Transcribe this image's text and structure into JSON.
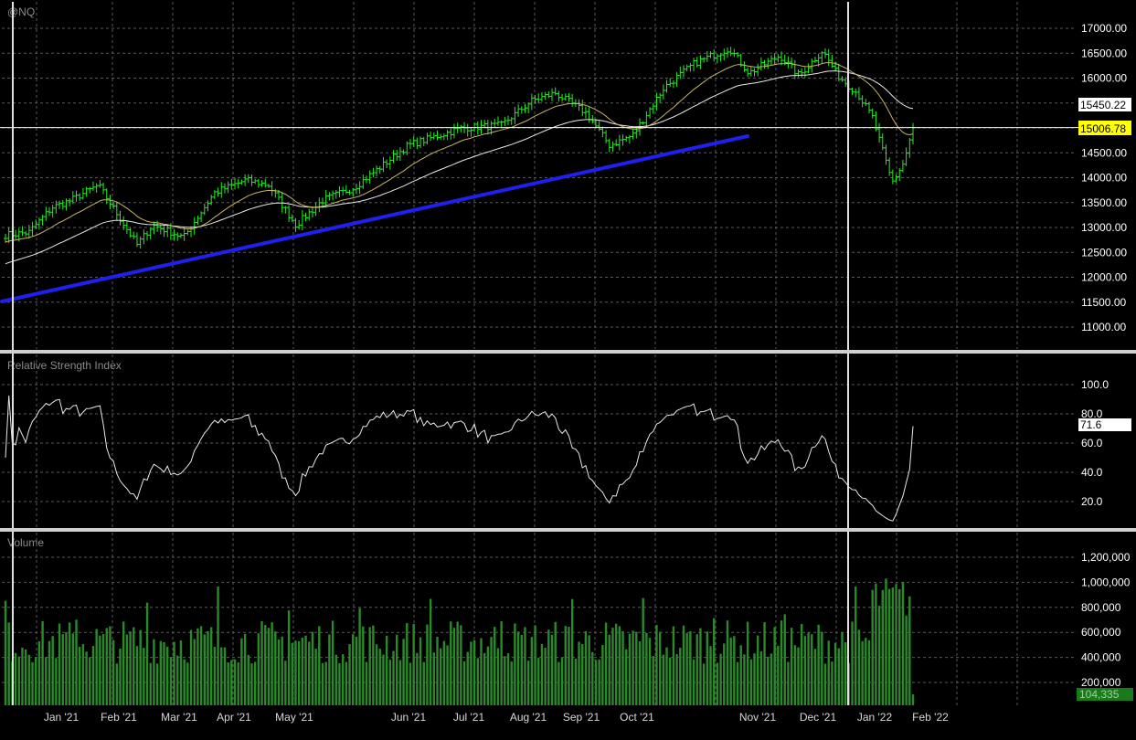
{
  "chart_data": {
    "type": "bar",
    "symbol": "@NQ",
    "x_labels": [
      "Jan '21",
      "Feb '21",
      "Mar '21",
      "Apr '21",
      "May '21",
      "Jun '21",
      "Jul '21",
      "Aug '21",
      "Sep '21",
      "Oct '21",
      "Nov '21",
      "Dec '21",
      "Jan '22",
      "Feb '22"
    ],
    "price": {
      "title": "@NQ",
      "y_ticks": [
        "17000.00",
        "16500.00",
        "16000.00",
        "15500.00",
        "15000.00",
        "14500.00",
        "14000.00",
        "13500.00",
        "13000.00",
        "12500.00",
        "12000.00",
        "11500.00",
        "11000.00"
      ],
      "ylim": [
        10550,
        17300
      ],
      "last_close_label": "15006.78",
      "ma_value_label": "15450.22",
      "last_close": 15006.78,
      "ma_value": 15450.22,
      "colors": {
        "bars": "#22ee22",
        "ma_fast": "#c8b464",
        "ma_slow": "#e8e8e8",
        "trendline": "#2020ee",
        "last_close_bg": "#ffff00",
        "ma_value_bg": "#ffffff"
      },
      "anchors": [
        {
          "m": 0,
          "c": 12850
        },
        {
          "m": 0.3,
          "c": 12900
        },
        {
          "m": 0.6,
          "c": 13400
        },
        {
          "m": 0.85,
          "c": 13550
        },
        {
          "m": 1.2,
          "c": 13850
        },
        {
          "m": 1.45,
          "c": 13250
        },
        {
          "m": 1.7,
          "c": 12650
        },
        {
          "m": 1.9,
          "c": 13050
        },
        {
          "m": 2.3,
          "c": 12800
        },
        {
          "m": 2.7,
          "c": 13700
        },
        {
          "m": 3.1,
          "c": 13950
        },
        {
          "m": 3.4,
          "c": 13850
        },
        {
          "m": 3.75,
          "c": 13050
        },
        {
          "m": 4.1,
          "c": 13550
        },
        {
          "m": 4.5,
          "c": 13800
        },
        {
          "m": 5.2,
          "c": 14650
        },
        {
          "m": 5.9,
          "c": 15000
        },
        {
          "m": 6.4,
          "c": 15050
        },
        {
          "m": 6.8,
          "c": 15550
        },
        {
          "m": 7.1,
          "c": 15700
        },
        {
          "m": 7.5,
          "c": 15300
        },
        {
          "m": 7.8,
          "c": 14650
        },
        {
          "m": 8.1,
          "c": 14850
        },
        {
          "m": 8.5,
          "c": 15800
        },
        {
          "m": 8.9,
          "c": 16300
        },
        {
          "m": 9.35,
          "c": 16600
        },
        {
          "m": 9.6,
          "c": 16100
        },
        {
          "m": 10.0,
          "c": 16450
        },
        {
          "m": 10.25,
          "c": 16050
        },
        {
          "m": 10.55,
          "c": 16550
        },
        {
          "m": 10.75,
          "c": 16050
        },
        {
          "m": 11.0,
          "c": 15700
        },
        {
          "m": 11.2,
          "c": 15200
        },
        {
          "m": 11.45,
          "c": 13900
        },
        {
          "m": 11.6,
          "c": 14300
        },
        {
          "m": 11.72,
          "c": 15006.78
        }
      ]
    },
    "trendline": {
      "points": [
        {
          "m": -0.4,
          "y": 11500
        },
        {
          "m": 9.3,
          "y": 14800
        }
      ]
    },
    "rsi": {
      "title": "Relative Strength Index",
      "y_ticks": [
        "100.0",
        "80.0",
        "60.0",
        "40.0",
        "20.0"
      ],
      "ylim": [
        0,
        107
      ],
      "last_label": "71.6",
      "last": 71.6,
      "color": "#e8e8e8"
    },
    "volume": {
      "title": "Volume",
      "y_ticks": [
        "1,200,000",
        "1,000,000",
        "800,000",
        "600,000",
        "400,000",
        "200,000"
      ],
      "ylim": [
        0,
        1400000
      ],
      "last_label": "104,335",
      "last": 104335,
      "color": "#2a8a2a",
      "last_bg": "#1a7a1a"
    }
  }
}
